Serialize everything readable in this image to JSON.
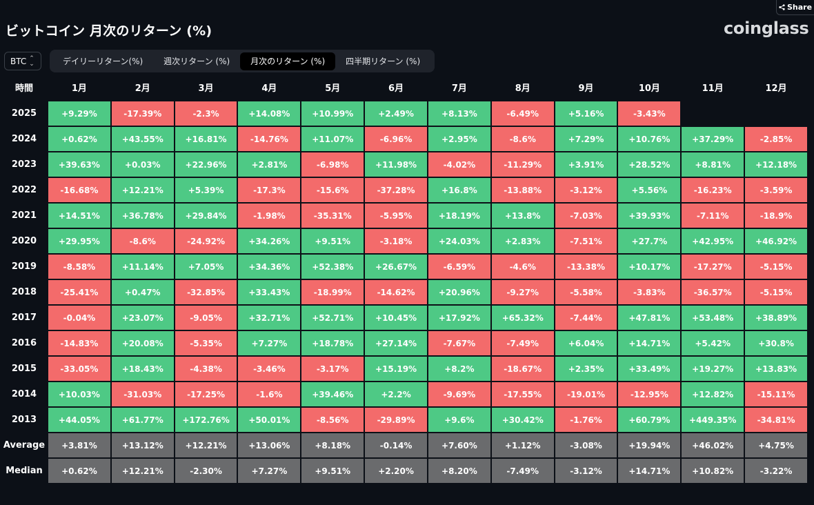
{
  "header": {
    "title": "ビットコイン 月次のリターン (%)",
    "logo": "coinglass",
    "share_label": "Share"
  },
  "coin_select": {
    "value": "BTC"
  },
  "tabs": [
    {
      "label": "デイリーリターン(%)",
      "active": false
    },
    {
      "label": "週次リターン (%)",
      "active": false
    },
    {
      "label": "月次のリターン (%)",
      "active": true
    },
    {
      "label": "四半期リターン (%)",
      "active": false
    }
  ],
  "table": {
    "corner_label": "時間",
    "columns": [
      "1月",
      "2月",
      "3月",
      "4月",
      "5月",
      "6月",
      "7月",
      "8月",
      "9月",
      "10月",
      "11月",
      "12月"
    ],
    "rows": [
      {
        "label": "2025",
        "values": [
          "+9.29%",
          "-17.39%",
          "-2.3%",
          "+14.08%",
          "+10.99%",
          "+2.49%",
          "+8.13%",
          "-6.49%",
          "+5.16%",
          "-3.43%",
          "",
          ""
        ]
      },
      {
        "label": "2024",
        "values": [
          "+0.62%",
          "+43.55%",
          "+16.81%",
          "-14.76%",
          "+11.07%",
          "-6.96%",
          "+2.95%",
          "-8.6%",
          "+7.29%",
          "+10.76%",
          "+37.29%",
          "-2.85%"
        ]
      },
      {
        "label": "2023",
        "values": [
          "+39.63%",
          "+0.03%",
          "+22.96%",
          "+2.81%",
          "-6.98%",
          "+11.98%",
          "-4.02%",
          "-11.29%",
          "+3.91%",
          "+28.52%",
          "+8.81%",
          "+12.18%"
        ]
      },
      {
        "label": "2022",
        "values": [
          "-16.68%",
          "+12.21%",
          "+5.39%",
          "-17.3%",
          "-15.6%",
          "-37.28%",
          "+16.8%",
          "-13.88%",
          "-3.12%",
          "+5.56%",
          "-16.23%",
          "-3.59%"
        ]
      },
      {
        "label": "2021",
        "values": [
          "+14.51%",
          "+36.78%",
          "+29.84%",
          "-1.98%",
          "-35.31%",
          "-5.95%",
          "+18.19%",
          "+13.8%",
          "-7.03%",
          "+39.93%",
          "-7.11%",
          "-18.9%"
        ]
      },
      {
        "label": "2020",
        "values": [
          "+29.95%",
          "-8.6%",
          "-24.92%",
          "+34.26%",
          "+9.51%",
          "-3.18%",
          "+24.03%",
          "+2.83%",
          "-7.51%",
          "+27.7%",
          "+42.95%",
          "+46.92%"
        ]
      },
      {
        "label": "2019",
        "values": [
          "-8.58%",
          "+11.14%",
          "+7.05%",
          "+34.36%",
          "+52.38%",
          "+26.67%",
          "-6.59%",
          "-4.6%",
          "-13.38%",
          "+10.17%",
          "-17.27%",
          "-5.15%"
        ]
      },
      {
        "label": "2018",
        "values": [
          "-25.41%",
          "+0.47%",
          "-32.85%",
          "+33.43%",
          "-18.99%",
          "-14.62%",
          "+20.96%",
          "-9.27%",
          "-5.58%",
          "-3.83%",
          "-36.57%",
          "-5.15%"
        ]
      },
      {
        "label": "2017",
        "values": [
          "-0.04%",
          "+23.07%",
          "-9.05%",
          "+32.71%",
          "+52.71%",
          "+10.45%",
          "+17.92%",
          "+65.32%",
          "-7.44%",
          "+47.81%",
          "+53.48%",
          "+38.89%"
        ]
      },
      {
        "label": "2016",
        "values": [
          "-14.83%",
          "+20.08%",
          "-5.35%",
          "+7.27%",
          "+18.78%",
          "+27.14%",
          "-7.67%",
          "-7.49%",
          "+6.04%",
          "+14.71%",
          "+5.42%",
          "+30.8%"
        ]
      },
      {
        "label": "2015",
        "values": [
          "-33.05%",
          "+18.43%",
          "-4.38%",
          "-3.46%",
          "-3.17%",
          "+15.19%",
          "+8.2%",
          "-18.67%",
          "+2.35%",
          "+33.49%",
          "+19.27%",
          "+13.83%"
        ]
      },
      {
        "label": "2014",
        "values": [
          "+10.03%",
          "-31.03%",
          "-17.25%",
          "-1.6%",
          "+39.46%",
          "+2.2%",
          "-9.69%",
          "-17.55%",
          "-19.01%",
          "-12.95%",
          "+12.82%",
          "-15.11%"
        ]
      },
      {
        "label": "2013",
        "values": [
          "+44.05%",
          "+61.77%",
          "+172.76%",
          "+50.01%",
          "-8.56%",
          "-29.89%",
          "+9.6%",
          "+30.42%",
          "-1.76%",
          "+60.79%",
          "+449.35%",
          "-34.81%"
        ]
      }
    ],
    "summary_rows": [
      {
        "label": "Average",
        "values": [
          "+3.81%",
          "+13.12%",
          "+12.21%",
          "+13.06%",
          "+8.18%",
          "-0.14%",
          "+7.60%",
          "+1.12%",
          "-3.08%",
          "+19.94%",
          "+46.02%",
          "+4.75%"
        ]
      },
      {
        "label": "Median",
        "values": [
          "+0.62%",
          "+12.21%",
          "-2.30%",
          "+7.27%",
          "+9.51%",
          "+2.20%",
          "+8.20%",
          "-7.49%",
          "-3.12%",
          "+14.71%",
          "+10.82%",
          "-3.22%"
        ]
      }
    ]
  },
  "colors": {
    "positive": "#4ec985",
    "negative": "#f36b6b",
    "summary": "#6a6b6d",
    "background": "#0c1017"
  }
}
